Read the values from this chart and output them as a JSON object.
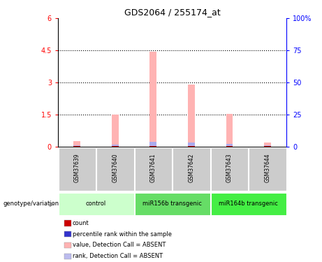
{
  "title": "GDS2064 / 255174_at",
  "samples": [
    "GSM37639",
    "GSM37640",
    "GSM37641",
    "GSM37642",
    "GSM37643",
    "GSM37644"
  ],
  "pink_bars": [
    0.25,
    1.5,
    4.45,
    2.9,
    1.55,
    0.18
  ],
  "blue_bars": [
    0.05,
    0.1,
    0.22,
    0.2,
    0.12,
    0.06
  ],
  "red_bars": [
    0.04,
    0.04,
    0.04,
    0.04,
    0.04,
    0.04
  ],
  "ylim_left": [
    0,
    6
  ],
  "ylim_right": [
    0,
    100
  ],
  "yticks_left": [
    0,
    1.5,
    3.0,
    4.5,
    6.0
  ],
  "yticks_right": [
    0,
    25,
    50,
    75,
    100
  ],
  "ytick_labels_left": [
    "0",
    "1.5",
    "3",
    "4.5",
    "6"
  ],
  "ytick_labels_right": [
    "0",
    "25",
    "50",
    "75",
    "100%"
  ],
  "bar_width": 0.18,
  "pink_color": "#ffb3b3",
  "blue_color": "#aaaaee",
  "red_color": "#cc0000",
  "sample_box_color": "#cccccc",
  "control_color": "#ccffcc",
  "transgenic1_color": "#77ee77",
  "transgenic2_color": "#44dd44",
  "group_info": [
    {
      "name": "control",
      "start": 0,
      "end": 1,
      "color": "#ccffcc"
    },
    {
      "name": "miR156b transgenic",
      "start": 2,
      "end": 3,
      "color": "#66dd66"
    },
    {
      "name": "miR164b transgenic",
      "start": 4,
      "end": 5,
      "color": "#44ee44"
    }
  ],
  "legend_items": [
    {
      "color": "#cc0000",
      "label": "count"
    },
    {
      "color": "#3333cc",
      "label": "percentile rank within the sample"
    },
    {
      "color": "#ffb3b3",
      "label": "value, Detection Call = ABSENT"
    },
    {
      "color": "#bbbbee",
      "label": "rank, Detection Call = ABSENT"
    }
  ]
}
